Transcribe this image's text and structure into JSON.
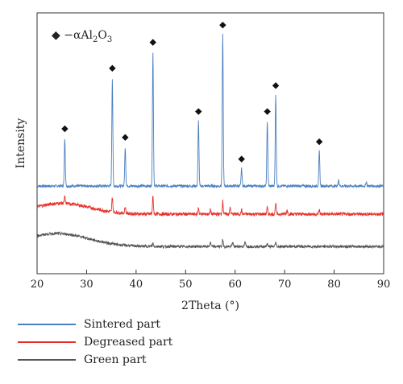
{
  "chart_data": {
    "type": "line",
    "xlabel": "2Theta (°)",
    "ylabel": "Intensity",
    "xlim": [
      20,
      90
    ],
    "xticks": [
      20,
      30,
      40,
      50,
      60,
      70,
      80,
      90
    ],
    "yticks_shown": false,
    "annotation": {
      "marker": "◆",
      "prefix": " −αAl",
      "sub1": "2",
      "mid": "O",
      "sub2": "3"
    },
    "marker_peaks": [
      25.6,
      35.2,
      37.8,
      43.4,
      52.6,
      57.5,
      61.3,
      66.5,
      68.2,
      77.0
    ],
    "series": [
      {
        "name": "Sintered part",
        "color": "#4a7fc1",
        "baseline": 0.15,
        "noise": 0.012,
        "peaks": [
          {
            "x": 25.6,
            "h": 0.22
          },
          {
            "x": 35.2,
            "h": 0.5
          },
          {
            "x": 37.8,
            "h": 0.18
          },
          {
            "x": 43.4,
            "h": 0.62
          },
          {
            "x": 52.6,
            "h": 0.3
          },
          {
            "x": 57.5,
            "h": 0.7
          },
          {
            "x": 61.3,
            "h": 0.08
          },
          {
            "x": 66.5,
            "h": 0.3
          },
          {
            "x": 68.2,
            "h": 0.42
          },
          {
            "x": 77.0,
            "h": 0.16
          },
          {
            "x": 80.9,
            "h": 0.03
          },
          {
            "x": 86.5,
            "h": 0.02
          }
        ]
      },
      {
        "name": "Degreased part",
        "color": "#e8302a",
        "baseline": 0.02,
        "noise": 0.015,
        "hump": {
          "center": 25,
          "width": 8,
          "height": 0.05
        },
        "peaks": [
          {
            "x": 25.6,
            "h": 0.03
          },
          {
            "x": 35.2,
            "h": 0.07
          },
          {
            "x": 37.8,
            "h": 0.03
          },
          {
            "x": 43.4,
            "h": 0.08
          },
          {
            "x": 52.6,
            "h": 0.03
          },
          {
            "x": 55.0,
            "h": 0.02
          },
          {
            "x": 57.5,
            "h": 0.06
          },
          {
            "x": 59.0,
            "h": 0.03
          },
          {
            "x": 61.3,
            "h": 0.02
          },
          {
            "x": 66.5,
            "h": 0.03
          },
          {
            "x": 68.2,
            "h": 0.05
          },
          {
            "x": 70.5,
            "h": 0.02
          },
          {
            "x": 77.0,
            "h": 0.02
          }
        ]
      },
      {
        "name": "Green part",
        "color": "#555555",
        "baseline": -0.13,
        "noise": 0.012,
        "hump": {
          "center": 24,
          "width": 9,
          "height": 0.06
        },
        "peaks": [
          {
            "x": 43.4,
            "h": 0.015
          },
          {
            "x": 55.0,
            "h": 0.02
          },
          {
            "x": 57.5,
            "h": 0.03
          },
          {
            "x": 59.5,
            "h": 0.02
          },
          {
            "x": 62.0,
            "h": 0.02
          },
          {
            "x": 66.5,
            "h": 0.015
          },
          {
            "x": 68.2,
            "h": 0.02
          }
        ]
      }
    ]
  }
}
